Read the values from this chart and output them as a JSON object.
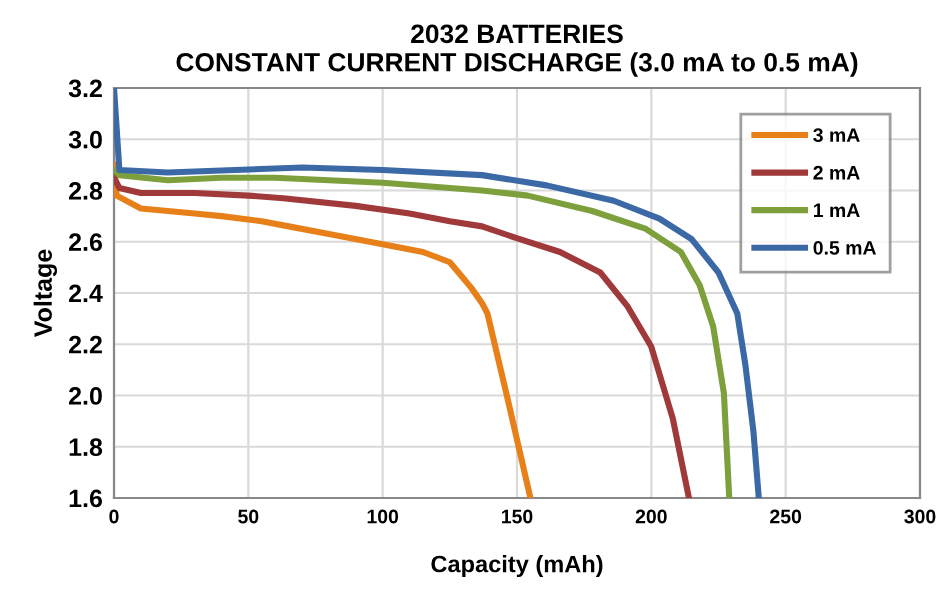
{
  "chart_data": {
    "type": "line",
    "title": "2032 BATTERIES\nCONSTANT CURRENT DISCHARGE (3.0 mA to 0.5 mA)",
    "xlabel": "Capacity (mAh)",
    "ylabel": "Voltage",
    "xlim": [
      0,
      300
    ],
    "xticks": [
      0,
      50,
      100,
      150,
      200,
      250,
      300
    ],
    "ylim": [
      1.6,
      3.2
    ],
    "yticks": [
      {
        "value": 1.6,
        "label": "1.6"
      },
      {
        "value": 1.8,
        "label": "1.8"
      },
      {
        "value": 2.0,
        "label": "2.0"
      },
      {
        "value": 2.2,
        "label": "2.2"
      },
      {
        "value": 2.4,
        "label": "2.4"
      },
      {
        "value": 2.6,
        "label": "2.6"
      },
      {
        "value": 2.8,
        "label": "2.8"
      },
      {
        "value": 3.0,
        "label": "3.0"
      },
      {
        "value": 3.2,
        "label": "3.2"
      }
    ],
    "grid": true,
    "legend": "top right",
    "marker": "none",
    "line_style": "solid",
    "series": [
      {
        "name": "3 mA",
        "color": "#e8801a",
        "x": [
          0,
          1,
          10,
          30,
          40,
          55,
          65,
          80,
          100,
          115,
          125,
          129,
          133,
          137,
          139,
          146,
          155
        ],
        "values": [
          2.9,
          2.78,
          2.73,
          2.71,
          2.7,
          2.68,
          2.66,
          2.63,
          2.59,
          2.56,
          2.52,
          2.47,
          2.42,
          2.36,
          2.32,
          2.01,
          1.6
        ]
      },
      {
        "name": "2 mA",
        "color": "#a0393a",
        "x": [
          0,
          2,
          10,
          30,
          50,
          63,
          90,
          110,
          125,
          137,
          151,
          166,
          181,
          191,
          200,
          208,
          214
        ],
        "values": [
          2.85,
          2.81,
          2.79,
          2.79,
          2.78,
          2.77,
          2.74,
          2.71,
          2.68,
          2.66,
          2.61,
          2.56,
          2.48,
          2.35,
          2.19,
          1.91,
          1.6
        ]
      },
      {
        "name": "1 mA",
        "color": "#7da03c",
        "x": [
          0,
          2,
          20,
          40,
          60,
          100,
          137,
          154,
          178,
          198,
          211,
          218,
          223,
          227,
          229
        ],
        "values": [
          2.88,
          2.86,
          2.84,
          2.85,
          2.85,
          2.83,
          2.8,
          2.78,
          2.72,
          2.65,
          2.56,
          2.43,
          2.27,
          2.01,
          1.6
        ]
      },
      {
        "name": "0.5 mA",
        "color": "#3b69a5",
        "x": [
          0,
          2,
          20,
          45,
          70,
          100,
          137,
          161,
          186,
          203,
          215,
          225,
          232,
          235,
          238,
          240
        ],
        "values": [
          3.2,
          2.88,
          2.87,
          2.88,
          2.89,
          2.88,
          2.86,
          2.82,
          2.76,
          2.69,
          2.61,
          2.48,
          2.32,
          2.12,
          1.86,
          1.6
        ]
      }
    ]
  }
}
